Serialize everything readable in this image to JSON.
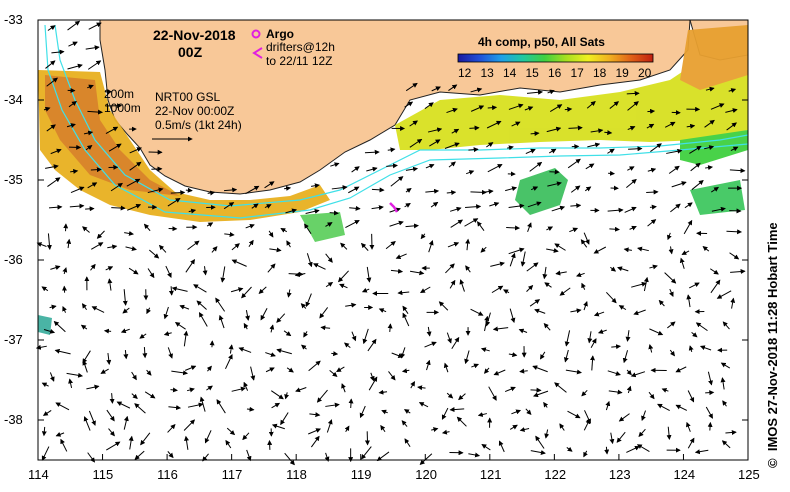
{
  "map": {
    "date": "22-Nov-2018",
    "time": "00Z",
    "argo_label": "Argo",
    "drifters_label": "drifters@12h",
    "drifters_to": "to 22/11 12Z",
    "colorbar_title": "4h comp, p50, All Sats",
    "colorbar_ticks": [
      "12",
      "13",
      "14",
      "15",
      "16",
      "17",
      "18",
      "19",
      "20"
    ],
    "colorbar_colors": [
      "#1a1aa0",
      "#2050d8",
      "#20a0e8",
      "#20c8a0",
      "#40d040",
      "#a8e020",
      "#f0f020",
      "#f0b020",
      "#e06018",
      "#c02010"
    ],
    "contour_labels": [
      "200m",
      "1000m"
    ],
    "nrt_label": "NRT00 GSL",
    "nrt_date": "22-Nov 00:00Z",
    "scale_label": "0.5m/s (1kt 24h)",
    "credit": "IMOS 27-Nov-2018 11:28 Hobart Time",
    "copyright_symbol": "©",
    "x_ticks": [
      "114",
      "115",
      "116",
      "117",
      "118",
      "119",
      "120",
      "121",
      "122",
      "123",
      "124",
      "125"
    ],
    "y_ticks": [
      "-33",
      "-34",
      "-35",
      "-36",
      "-37",
      "-38"
    ],
    "land_color": "#f8c898",
    "contour_color": "#40e0e8",
    "argo_color": "#e020e0"
  }
}
